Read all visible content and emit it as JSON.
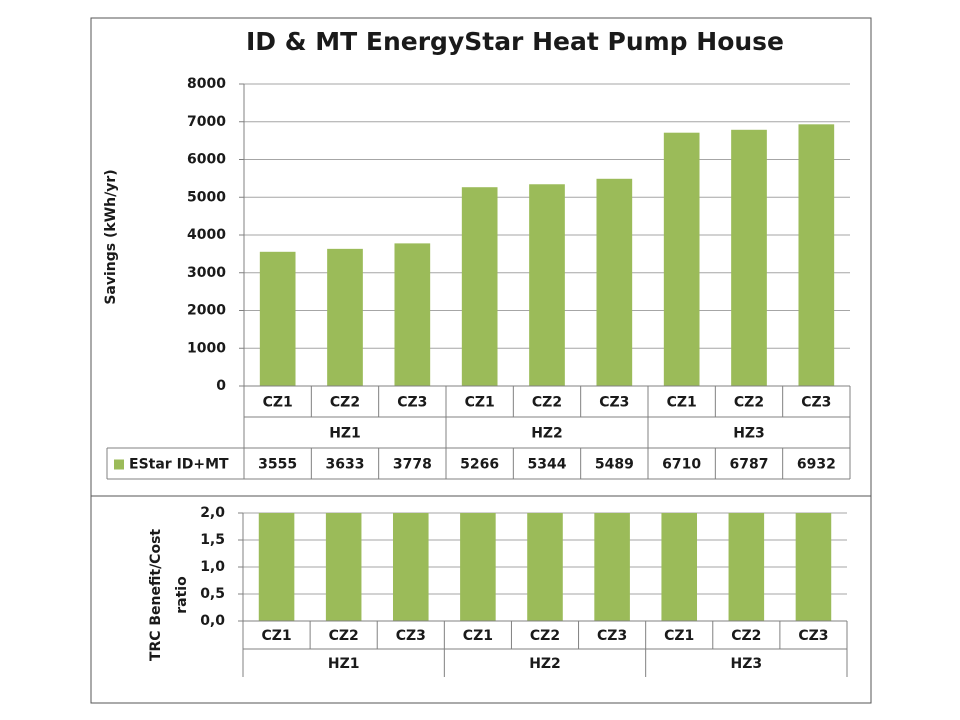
{
  "chart_data": [
    {
      "type": "bar",
      "title": "ID & MT EnergyStar Heat Pump House",
      "ylabel": "Savings (kWh/yr)",
      "ylim": [
        0,
        8000
      ],
      "yticks": [
        "0",
        "1000",
        "2000",
        "3000",
        "4000",
        "5000",
        "6000",
        "7000",
        "8000"
      ],
      "grid": true,
      "categories": [
        "CZ1",
        "CZ2",
        "CZ3",
        "CZ1",
        "CZ2",
        "CZ3",
        "CZ1",
        "CZ2",
        "CZ3"
      ],
      "groups": [
        "HZ1",
        "HZ2",
        "HZ3"
      ],
      "series": [
        {
          "name": "EStar ID+MT",
          "color": "#9bbb59",
          "values": [
            3555,
            3633,
            3778,
            5266,
            5344,
            5489,
            6710,
            6787,
            6932
          ]
        }
      ],
      "data_table": {
        "row_label": "EStar ID+MT",
        "cells": [
          "3555",
          "3633",
          "3778",
          "5266",
          "5344",
          "5489",
          "6710",
          "6787",
          "6932"
        ]
      }
    },
    {
      "type": "bar",
      "ylabel_line1": "TRC Benefit/Cost",
      "ylabel_line2": "ratio",
      "ylim": [
        0,
        2
      ],
      "yticks": [
        "0,0",
        "0,5",
        "1,0",
        "1,5",
        "2,0"
      ],
      "grid": true,
      "categories": [
        "CZ1",
        "CZ2",
        "CZ3",
        "CZ1",
        "CZ2",
        "CZ3",
        "CZ1",
        "CZ2",
        "CZ3"
      ],
      "groups": [
        "HZ1",
        "HZ2",
        "HZ3"
      ],
      "series": [
        {
          "color": "#9bbb59",
          "values": [
            2,
            2,
            2,
            2,
            2,
            2,
            2,
            2,
            2
          ]
        }
      ]
    }
  ]
}
